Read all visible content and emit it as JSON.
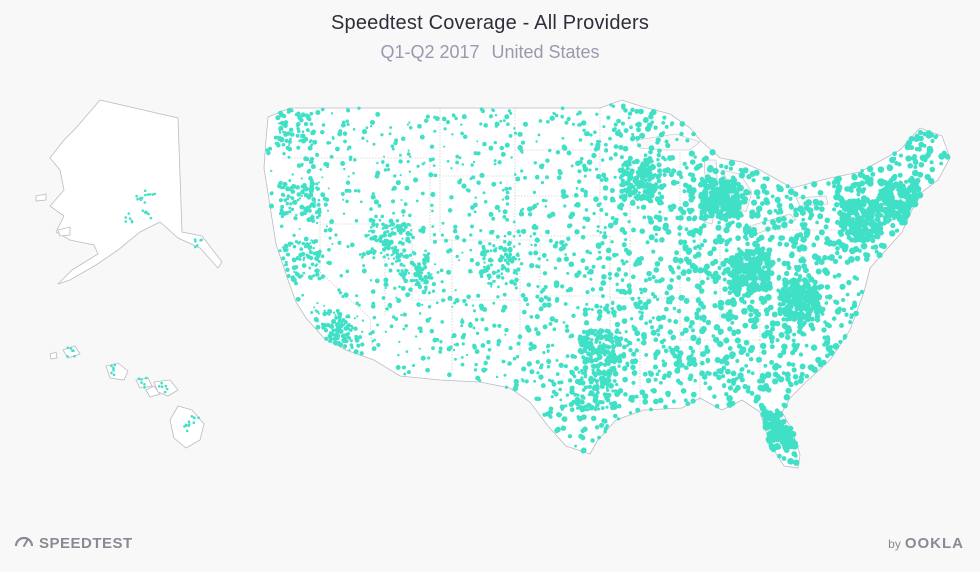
{
  "header": {
    "title": "Speedtest Coverage - All Providers",
    "period": "Q1-Q2 2017",
    "region": "United States"
  },
  "map": {
    "coverage_color": "#40e0c6",
    "border_color": "#b9bcc4",
    "land_color": "#ffffff",
    "regions_shown": [
      "contiguous-us",
      "alaska",
      "hawaii"
    ]
  },
  "footer": {
    "logo_left": "SPEEDTEST",
    "logo_left_icon": "speedometer-icon",
    "logo_right_prefix": "by",
    "logo_right": "OOKLA"
  }
}
